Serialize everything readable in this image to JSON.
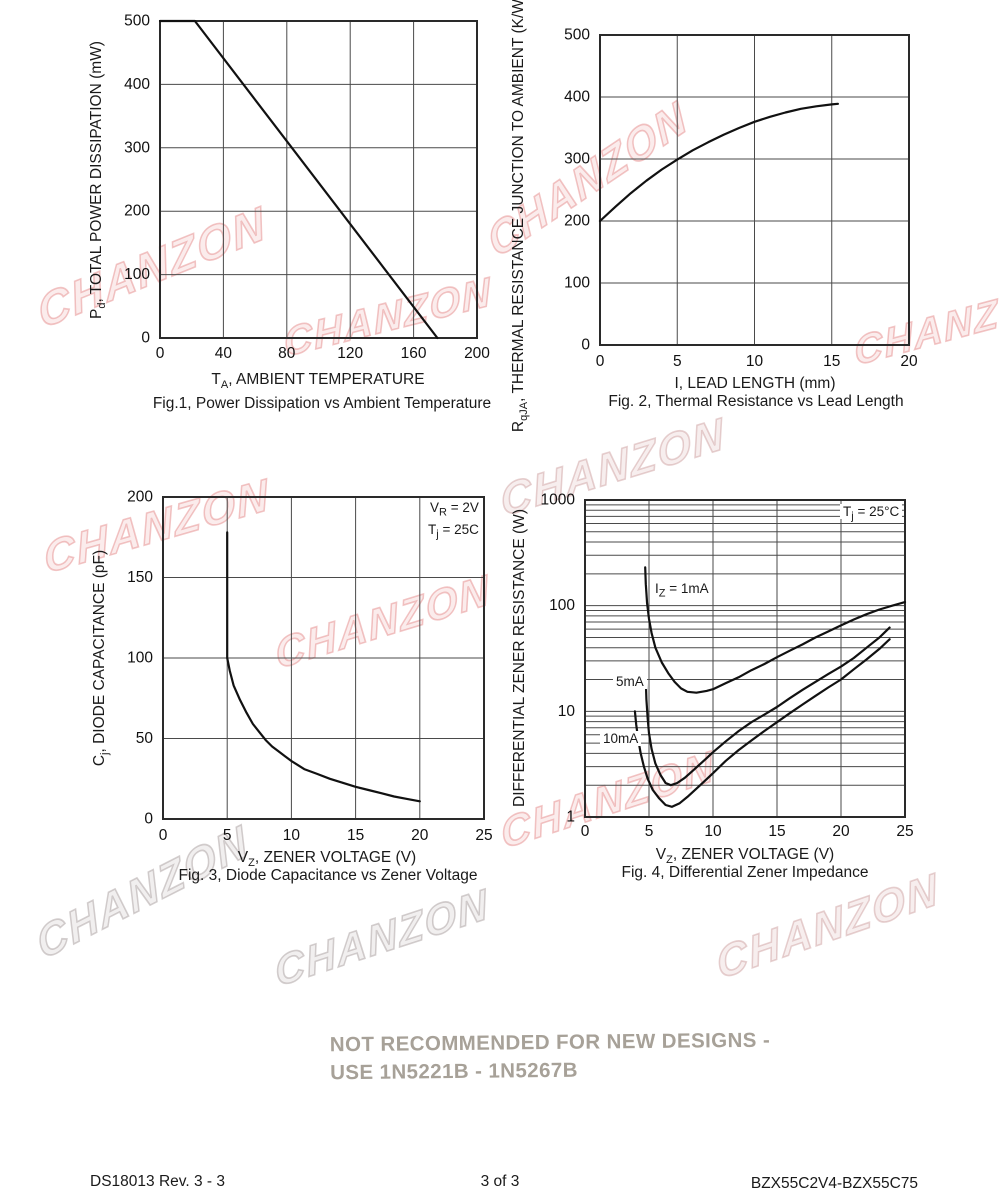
{
  "page": {
    "watermark_text": "CHANZON",
    "notice": {
      "line1": "NOT RECOMMENDED FOR NEW DESIGNS -",
      "line2": "USE 1N5221B - 1N5267B",
      "color": "#a7a198"
    },
    "footer": {
      "left": "DS18013 Rev. 3 - 3",
      "center": "3 of 3",
      "right": "BZX55C2V4-BZX55C75"
    }
  },
  "chart_data": [
    {
      "id": "fig1",
      "type": "line",
      "caption": "Fig.1,  Power Dissipation vs Ambient Temperature",
      "xlabel_rich": [
        {
          "t": "T"
        },
        {
          "sub": "A"
        },
        {
          "t": ", AMBIENT TEMPERATURE"
        }
      ],
      "ylabel_rich": [
        {
          "t": "P"
        },
        {
          "sub": "d"
        },
        {
          "t": ", TOTAL POWER DISSIPATION (mW)"
        }
      ],
      "xlim": [
        0,
        200
      ],
      "ylim": [
        0,
        500
      ],
      "xticks": [
        0,
        40,
        80,
        120,
        160,
        200
      ],
      "yticks": [
        0,
        100,
        200,
        300,
        400,
        500
      ],
      "grid": true,
      "yscale": "linear",
      "series": [
        {
          "name": "power-derating-line",
          "points": [
            [
              0,
              500
            ],
            [
              22,
              500
            ],
            [
              175,
              0
            ]
          ]
        }
      ]
    },
    {
      "id": "fig2",
      "type": "line",
      "caption": "Fig. 2,  Thermal Resistance vs Lead Length",
      "xlabel_rich": [
        {
          "t": "I, LEAD LENGTH (mm)"
        }
      ],
      "ylabel_rich": [
        {
          "t": "R"
        },
        {
          "sub": "qJA"
        },
        {
          "t": ", THERMAL RESISTANCE JUNCTION TO AMBIENT (K/W)"
        }
      ],
      "xlim": [
        0,
        20
      ],
      "ylim": [
        0,
        500
      ],
      "xticks": [
        0,
        5,
        10,
        15,
        20
      ],
      "yticks": [
        0,
        100,
        200,
        300,
        400,
        500
      ],
      "grid": true,
      "yscale": "linear",
      "series": [
        {
          "name": "thermal-resistance-curve",
          "points": [
            [
              0,
              200
            ],
            [
              1,
              223
            ],
            [
              2,
              245
            ],
            [
              3,
              265
            ],
            [
              4,
              283
            ],
            [
              5,
              299
            ],
            [
              6,
              314
            ],
            [
              7,
              327
            ],
            [
              8,
              339
            ],
            [
              9,
              350
            ],
            [
              10,
              360
            ],
            [
              11,
              368
            ],
            [
              12,
              375
            ],
            [
              13,
              381
            ],
            [
              14,
              385
            ],
            [
              15,
              388
            ],
            [
              15.4,
              389
            ]
          ]
        }
      ]
    },
    {
      "id": "fig3",
      "type": "line",
      "caption": "Fig. 3,  Diode Capacitance vs Zener Voltage",
      "xlabel_rich": [
        {
          "t": "V"
        },
        {
          "sub": "Z"
        },
        {
          "t": ", ZENER VOLTAGE (V)"
        }
      ],
      "ylabel_rich": [
        {
          "t": "C"
        },
        {
          "sub": "j"
        },
        {
          "t": ", DIODE CAPACITANCE (pF)"
        }
      ],
      "annotation1_rich": [
        {
          "t": "V"
        },
        {
          "sub": "R"
        },
        {
          "t": " = 2V"
        }
      ],
      "annotation2_rich": [
        {
          "t": "T"
        },
        {
          "sub": "j"
        },
        {
          "t": " = 25C"
        }
      ],
      "xlim": [
        0,
        25
      ],
      "ylim": [
        0,
        200
      ],
      "xticks": [
        0,
        5,
        10,
        15,
        20,
        25
      ],
      "yticks": [
        0,
        50,
        100,
        150,
        200
      ],
      "grid": true,
      "yscale": "linear",
      "series": [
        {
          "name": "diode-capacitance-curve",
          "points": [
            [
              5,
              178
            ],
            [
              5,
              100
            ],
            [
              5.2,
              92
            ],
            [
              5.5,
              83
            ],
            [
              6,
              74
            ],
            [
              6.5,
              66
            ],
            [
              7,
              59
            ],
            [
              7.5,
              54
            ],
            [
              8,
              49
            ],
            [
              8.5,
              45
            ],
            [
              9,
              42
            ],
            [
              9.5,
              39
            ],
            [
              10,
              36
            ],
            [
              11,
              31
            ],
            [
              12,
              28
            ],
            [
              13,
              25
            ],
            [
              14,
              22.5
            ],
            [
              15,
              20
            ],
            [
              16,
              18
            ],
            [
              17,
              16
            ],
            [
              18,
              14
            ],
            [
              19,
              12.5
            ],
            [
              20,
              11
            ]
          ]
        }
      ]
    },
    {
      "id": "fig4",
      "type": "line",
      "caption": "Fig. 4,  Differential Zener Impedance",
      "xlabel_rich": [
        {
          "t": "V"
        },
        {
          "sub": "Z"
        },
        {
          "t": ", ZENER VOLTAGE (V)"
        }
      ],
      "ylabel_rich": [
        {
          "t": "DIFFERENTIAL ZENER RESISTANCE (W)"
        }
      ],
      "annotation_rich": [
        {
          "t": "T"
        },
        {
          "sub": "j"
        },
        {
          "t": " = 25°C"
        }
      ],
      "xlim": [
        0,
        25
      ],
      "ylim": [
        1,
        1000
      ],
      "xticks": [
        0,
        5,
        10,
        15,
        20,
        25
      ],
      "yticks": [
        1,
        10,
        100,
        1000
      ],
      "grid": true,
      "yscale": "log",
      "series": [
        {
          "name": "iz-1ma-curve",
          "label_rich": [
            {
              "t": "I"
            },
            {
              "sub": "Z"
            },
            {
              "t": " = 1mA"
            }
          ],
          "points": [
            [
              4.7,
              230
            ],
            [
              4.75,
              160
            ],
            [
              4.85,
              105
            ],
            [
              5,
              75
            ],
            [
              5.2,
              55
            ],
            [
              5.5,
              40
            ],
            [
              6,
              29
            ],
            [
              6.5,
              23
            ],
            [
              7,
              19
            ],
            [
              7.5,
              16.5
            ],
            [
              8,
              15.3
            ],
            [
              8.7,
              15
            ],
            [
              9.5,
              15.6
            ],
            [
              10,
              16.2
            ],
            [
              11,
              18.5
            ],
            [
              12,
              21
            ],
            [
              13,
              24.5
            ],
            [
              14,
              28
            ],
            [
              15,
              32.5
            ],
            [
              16,
              37.5
            ],
            [
              17,
              43
            ],
            [
              18,
              50
            ],
            [
              19,
              57
            ],
            [
              20,
              65
            ],
            [
              21,
              74
            ],
            [
              22,
              83
            ],
            [
              23,
              92
            ],
            [
              24,
              100
            ],
            [
              25,
              108
            ]
          ]
        },
        {
          "name": "iz-5ma-curve",
          "label_rich": [
            {
              "t": "5mA"
            }
          ],
          "points": [
            [
              4.75,
              20
            ],
            [
              4.8,
              13
            ],
            [
              4.9,
              8.5
            ],
            [
              5,
              6.2
            ],
            [
              5.2,
              4.4
            ],
            [
              5.5,
              3.2
            ],
            [
              5.9,
              2.5
            ],
            [
              6.3,
              2.1
            ],
            [
              6.7,
              2.0
            ],
            [
              7.2,
              2.1
            ],
            [
              7.8,
              2.35
            ],
            [
              8.5,
              2.8
            ],
            [
              9.5,
              3.6
            ],
            [
              10,
              4.1
            ],
            [
              11,
              5.2
            ],
            [
              12,
              6.5
            ],
            [
              13,
              7.9
            ],
            [
              14,
              9.3
            ],
            [
              15,
              11
            ],
            [
              16,
              13.3
            ],
            [
              17,
              16
            ],
            [
              18,
              19
            ],
            [
              19,
              22.5
            ],
            [
              20,
              26.5
            ],
            [
              21,
              32
            ],
            [
              22,
              40
            ],
            [
              23,
              50
            ],
            [
              23.8,
              62
            ]
          ]
        },
        {
          "name": "iz-10ma-curve",
          "label_rich": [
            {
              "t": "10mA"
            }
          ],
          "points": [
            [
              3.9,
              10
            ],
            [
              4,
              7.5
            ],
            [
              4.15,
              5.5
            ],
            [
              4.35,
              4
            ],
            [
              4.6,
              3
            ],
            [
              4.9,
              2.3
            ],
            [
              5.3,
              1.8
            ],
            [
              5.8,
              1.5
            ],
            [
              6.3,
              1.3
            ],
            [
              6.8,
              1.25
            ],
            [
              7.4,
              1.35
            ],
            [
              8,
              1.55
            ],
            [
              9,
              2.0
            ],
            [
              10,
              2.6
            ],
            [
              11,
              3.4
            ],
            [
              12,
              4.3
            ],
            [
              13,
              5.3
            ],
            [
              14,
              6.5
            ],
            [
              15,
              7.9
            ],
            [
              16,
              9.6
            ],
            [
              17,
              11.6
            ],
            [
              18,
              14
            ],
            [
              19,
              16.8
            ],
            [
              20,
              20
            ],
            [
              21,
              25
            ],
            [
              22,
              31
            ],
            [
              23,
              39
            ],
            [
              23.8,
              48
            ]
          ]
        }
      ]
    }
  ]
}
